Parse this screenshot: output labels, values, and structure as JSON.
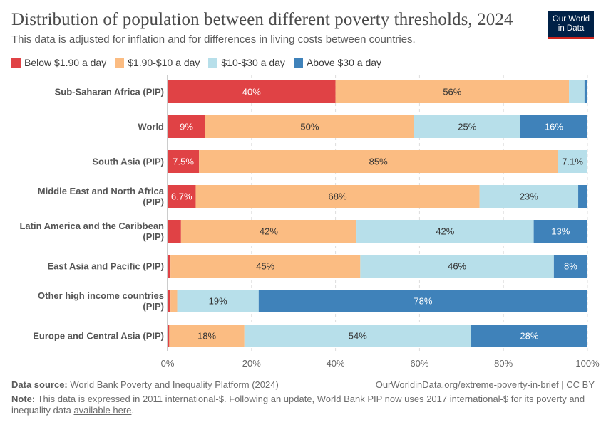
{
  "header": {
    "title": "Distribution of population between different poverty thresholds, 2024",
    "subtitle": "This data is adjusted for inflation and for differences in living costs between countries.",
    "logo_line1": "Our World",
    "logo_line2": "in Data"
  },
  "legend": [
    {
      "label": "Below $1.90 a day",
      "color": "#e04245"
    },
    {
      "label": "$1.90-$10 a day",
      "color": "#fbbc82"
    },
    {
      "label": "$10-$30 a day",
      "color": "#b7dfea"
    },
    {
      "label": "Above $30 a day",
      "color": "#3f82ba"
    }
  ],
  "chart_data": {
    "type": "bar",
    "orientation": "horizontal",
    "stacked": true,
    "categories": [
      "Sub-Saharan Africa (PIP)",
      "World",
      "South Asia (PIP)",
      "Middle East and North Africa (PIP)",
      "Latin America and the Caribbean (PIP)",
      "East Asia and Pacific (PIP)",
      "Other high income countries (PIP)",
      "Europe and Central Asia (PIP)"
    ],
    "series": [
      {
        "name": "Below $1.90 a day",
        "color": "#e04245",
        "values": [
          40,
          9,
          7.5,
          6.7,
          3.2,
          0.7,
          0.7,
          0.4
        ],
        "labels": [
          "40%",
          "9%",
          "7.5%",
          "6.7%",
          "",
          "",
          "",
          ""
        ]
      },
      {
        "name": "$1.90-$10 a day",
        "color": "#fbbc82",
        "values": [
          55.6,
          49.7,
          85.4,
          67.6,
          41.8,
          45.2,
          1.6,
          17.9
        ],
        "labels": [
          "56%",
          "50%",
          "85%",
          "68%",
          "42%",
          "45%",
          "",
          "18%"
        ]
      },
      {
        "name": "$10-$30 a day",
        "color": "#b7dfea",
        "values": [
          3.7,
          25.3,
          7.1,
          23.5,
          42.2,
          46.1,
          19.4,
          54
        ]
      },
      {
        "name": "Above $30 a day",
        "color": "#3f82ba",
        "values": [
          0.7,
          16,
          0,
          2.2,
          12.8,
          8,
          78.3,
          27.7
        ]
      }
    ],
    "segment_labels": [
      [
        "40%",
        "56%",
        "",
        ""
      ],
      [
        "9%",
        "50%",
        "25%",
        "16%"
      ],
      [
        "7.5%",
        "85%",
        "7.1%",
        ""
      ],
      [
        "6.7%",
        "68%",
        "23%",
        ""
      ],
      [
        "",
        "42%",
        "42%",
        "13%"
      ],
      [
        "",
        "45%",
        "46%",
        "8%"
      ],
      [
        "",
        "",
        "19%",
        "78%"
      ],
      [
        "",
        "18%",
        "54%",
        "28%"
      ]
    ],
    "xticks": [
      "0%",
      "20%",
      "40%",
      "60%",
      "80%",
      "100%"
    ],
    "xlim": [
      0,
      100
    ],
    "grid": "vertical-dashed"
  },
  "footer": {
    "source_label": "Data source:",
    "source_text": "World Bank Poverty and Inequality Platform (2024)",
    "url": "OurWorldinData.org/extreme-poverty-in-brief | CC BY",
    "note_label": "Note:",
    "note_text": "This data is expressed in 2011 international-$. Following an update, World Bank PIP now uses 2017 international-$ for its poverty and inequality data ",
    "note_link": "available here",
    "note_end": "."
  }
}
